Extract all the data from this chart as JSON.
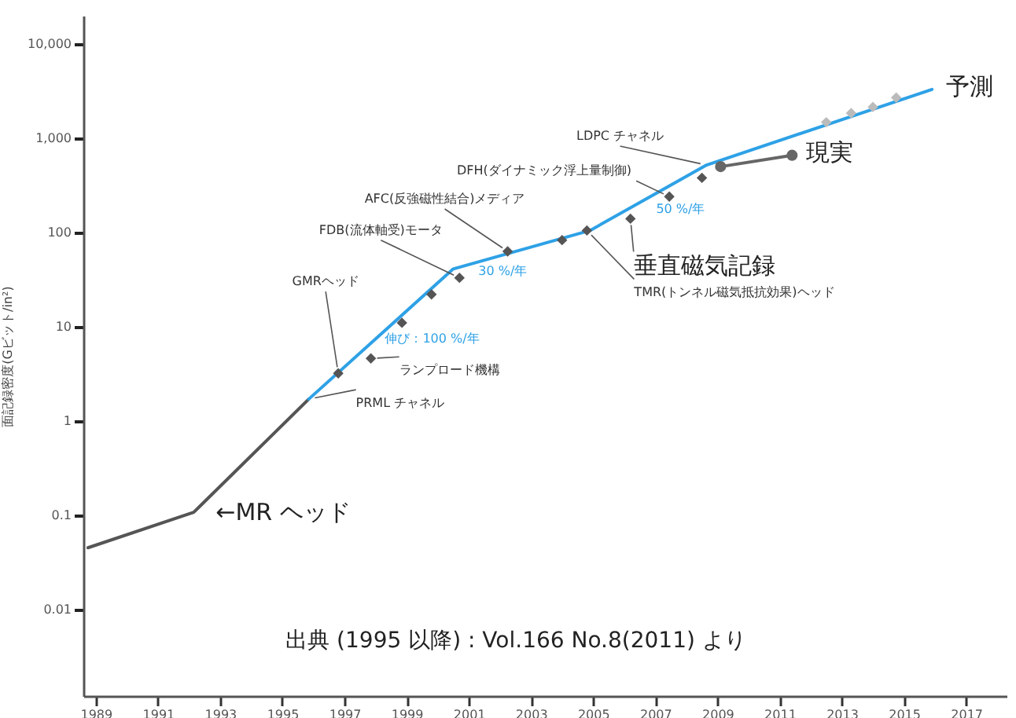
{
  "chart_data": {
    "type": "line",
    "ylabel": "面記録密度(Gビット/in²)",
    "log": "y",
    "grid": false,
    "xlim": [
      1988.6,
      2018.3
    ],
    "xticks": [
      1989,
      1991,
      1993,
      1995,
      1997,
      1999,
      2001,
      2003,
      2005,
      2007,
      2009,
      2011,
      2013,
      2015,
      2017
    ],
    "ylim": [
      0.0012,
      20000
    ],
    "yticks": [
      {
        "value": 0.01,
        "label": "0.01"
      },
      {
        "value": 0.1,
        "label": "0.1"
      },
      1,
      10,
      100,
      {
        "value": 1000,
        "label": "1,000"
      },
      {
        "value": 10000,
        "label": "10,000"
      }
    ],
    "series": [
      {
        "color": "#555555",
        "marker": "none",
        "x": [
          1988.75,
          1992.15,
          1995.85
        ],
        "values": [
          0.045,
          0.107,
          1.7
        ]
      },
      {
        "name": "予測",
        "color": "#2ea1e6",
        "marker": "none",
        "x": [
          1995.85,
          2000.5,
          2004.9,
          2008.65,
          2015.9
        ],
        "values": [
          1.7,
          41,
          105,
          520,
          3300
        ]
      },
      {
        "type": "scatter",
        "color": "#555555",
        "marker": "diamond",
        "x": [
          1996.8,
          1997.85,
          1998.85,
          1999.8,
          2000.7,
          2002.25,
          2004,
          2004.8,
          2006.2,
          2007.45,
          2008.5
        ],
        "values": [
          3.2,
          4.6,
          11,
          22,
          33,
          63,
          83,
          105,
          140,
          240,
          380
        ]
      },
      {
        "type": "scatter",
        "color": "#bbbbbb",
        "marker": "diamond",
        "x": [
          2012.5,
          2013.3,
          2014,
          2014.75
        ],
        "values": [
          1480,
          1850,
          2150,
          2700
        ]
      },
      {
        "name": "現実",
        "color": "#666666",
        "marker": "circle",
        "x": [
          2009.1,
          2011.4
        ],
        "values": [
          500,
          660
        ]
      }
    ],
    "annotations": [
      {
        "text": "GMRヘッド",
        "x": 1996.8,
        "y": 3.2
      },
      {
        "text": "ランプロード機構",
        "x": 1997.85,
        "y": 4.6
      },
      {
        "text": "PRML チャネル",
        "x": 1995.85,
        "y": 1.7
      },
      {
        "text": "FDB(流体軸受)モータ",
        "x": 2000.7,
        "y": 33
      },
      {
        "text": "AFC(反強磁性結合)メディア",
        "x": 2002.25,
        "y": 63
      },
      {
        "text": "DFH(ダイナミック浮上量制御)",
        "x": 2007.45,
        "y": 240
      },
      {
        "text": "LDPC チャネル",
        "x": 2008.65,
        "y": 520
      },
      {
        "text": "TMR(トンネル磁気抵抗効果)ヘッド",
        "x": 2004.8,
        "y": 105
      },
      {
        "text": "垂直磁気記録",
        "x": 2006.2,
        "y": 140
      },
      {
        "text": "←MR ヘッド",
        "x": 1992.15,
        "y": 0.107
      },
      {
        "text": "伸び：100 %/年",
        "x": 1998.2,
        "y": 8.5
      },
      {
        "text": "30 %/年",
        "x": 2002.7,
        "y": 66
      },
      {
        "text": "50 %/年",
        "x": 2006.8,
        "y": 235
      },
      "出典 (1995 以降) : Vol.166 No.8(2011) より"
    ]
  }
}
